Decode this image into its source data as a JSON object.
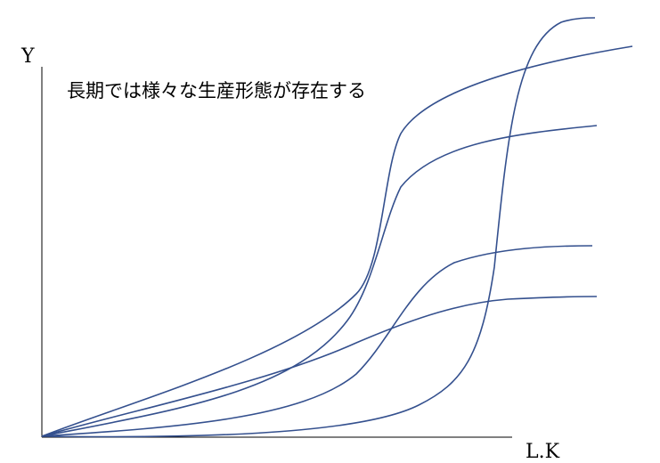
{
  "axes": {
    "y_label": "Y",
    "x_label": "L.K"
  },
  "annotation": "長期では様々な生産形態が存在する"
}
